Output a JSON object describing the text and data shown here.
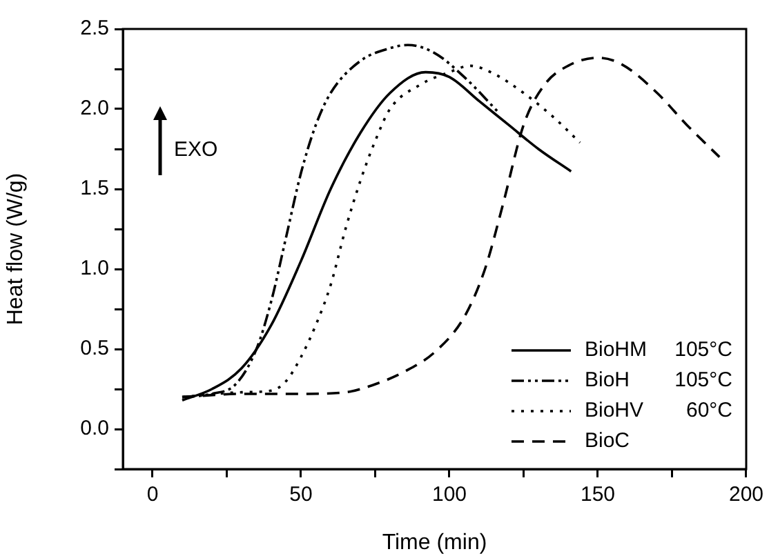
{
  "chart_data": {
    "type": "line",
    "xlabel": "Time (min)",
    "ylabel": "Heat flow (W/g)",
    "xlim": [
      -10,
      200
    ],
    "xticks": [
      0,
      {
        "value": 25,
        "label": null
      },
      50,
      {
        "value": 75,
        "label": null
      },
      100,
      {
        "value": 125,
        "label": null
      },
      150,
      {
        "value": 175,
        "label": null
      },
      200
    ],
    "ylim": [
      -0.25,
      2.5
    ],
    "yticks": [
      {
        "value": -0.25,
        "label": null
      },
      {
        "value": 0,
        "label": "0.0"
      },
      {
        "value": 0.25,
        "label": null
      },
      0.5,
      {
        "value": 0.75,
        "label": null
      },
      {
        "value": 1,
        "label": "1.0"
      },
      {
        "value": 1.25,
        "label": null
      },
      1.5,
      {
        "value": 1.75,
        "label": null
      },
      {
        "value": 2,
        "label": "2.0"
      },
      {
        "value": 2.25,
        "label": null
      },
      2.5
    ],
    "grid": false,
    "legend": "bottom right",
    "marker": "none",
    "annotations": [
      "EXO"
    ],
    "series": [
      {
        "name": "BioHM 105°C",
        "color": "#000000",
        "line_style": "solid",
        "x": [
          10,
          20,
          30,
          40,
          50,
          60,
          70,
          80,
          92,
          100,
          110,
          120,
          130,
          141
        ],
        "values": [
          0.18,
          0.25,
          0.38,
          0.65,
          1.05,
          1.5,
          1.85,
          2.1,
          2.23,
          2.2,
          2.05,
          1.9,
          1.75,
          1.61
        ]
      },
      {
        "name": "BioH 105°C",
        "color": "#000000",
        "line_style": "dashdot",
        "x": [
          10,
          20,
          28,
          35,
          40,
          45,
          50,
          55,
          60,
          70,
          80,
          86,
          95,
          105,
          117
        ],
        "values": [
          0.2,
          0.22,
          0.28,
          0.5,
          0.8,
          1.2,
          1.6,
          1.9,
          2.1,
          2.3,
          2.38,
          2.4,
          2.35,
          2.2,
          1.97
        ]
      },
      {
        "name": "BioHV 60°C",
        "color": "#000000",
        "line_style": "dotted",
        "x": [
          10,
          30,
          40,
          45,
          50,
          55,
          60,
          65,
          70,
          75,
          80,
          90,
          100,
          107,
          115,
          125,
          135,
          144
        ],
        "values": [
          0.2,
          0.23,
          0.24,
          0.3,
          0.45,
          0.65,
          0.9,
          1.25,
          1.55,
          1.8,
          2.0,
          2.15,
          2.23,
          2.27,
          2.22,
          2.1,
          1.95,
          1.79
        ]
      },
      {
        "name": "BioC",
        "color": "#000000",
        "line_style": "dashed",
        "x": [
          10,
          30,
          50,
          65,
          75,
          85,
          95,
          105,
          112,
          118,
          125,
          132,
          140,
          150,
          158,
          170,
          180,
          191
        ],
        "values": [
          0.2,
          0.22,
          0.22,
          0.23,
          0.28,
          0.36,
          0.48,
          0.7,
          1.0,
          1.4,
          1.9,
          2.15,
          2.27,
          2.32,
          2.28,
          2.1,
          1.9,
          1.7
        ]
      }
    ]
  }
}
